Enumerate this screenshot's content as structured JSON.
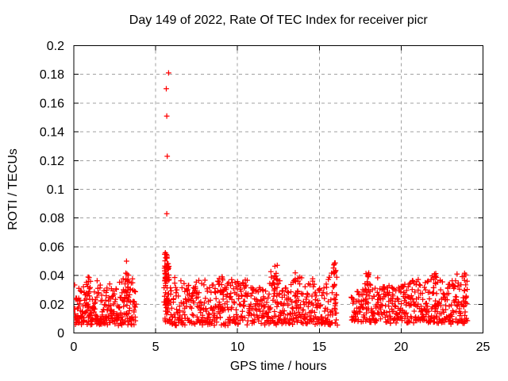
{
  "chart_data": {
    "type": "scatter",
    "title": "Day 149 of 2022, Rate Of TEC Index for receiver picr",
    "xlabel": "GPS time / hours",
    "ylabel": "ROTI / TECUs",
    "xlim": [
      0,
      25
    ],
    "ylim": [
      0,
      0.2
    ],
    "xticks": [
      0,
      5,
      10,
      15,
      20,
      25
    ],
    "xtick_labels": [
      "0",
      "5",
      "10",
      "15",
      "20",
      "25"
    ],
    "yticks": [
      0,
      0.02,
      0.04,
      0.06,
      0.08,
      0.1,
      0.12,
      0.14,
      0.16,
      0.18,
      0.2
    ],
    "ytick_labels": [
      "0",
      "0.02",
      "0.04",
      "0.06",
      "0.08",
      "0.1",
      "0.12",
      "0.14",
      "0.16",
      "0.18",
      "0.2"
    ],
    "grid": true,
    "legend": "none",
    "colors": {
      "marker": "#ff0000",
      "axis": "#000000",
      "grid": "#a0a0a0",
      "text": "#000000",
      "background": "#ffffff"
    },
    "marker": {
      "shape": "plus",
      "color": "#ff0000",
      "arm": 3.4,
      "stroke_width": 1.25
    },
    "series": [
      {
        "name": "ROTI",
        "marker": "plus",
        "color": "#ff0000"
      }
    ],
    "seed": 149,
    "outlier_points": [
      [
        5.65,
        0.17
      ],
      [
        5.68,
        0.151
      ],
      [
        5.68,
        0.083
      ],
      [
        5.71,
        0.123
      ],
      [
        5.79,
        0.181
      ],
      [
        3.22,
        0.05
      ]
    ],
    "data_gaps": [
      [
        3.8,
        5.5
      ],
      [
        16.1,
        16.95
      ]
    ],
    "clusters": [
      {
        "name": "morning-cluster",
        "x_range": [
          0.02,
          3.8
        ],
        "n": 280,
        "y_min": 0.006,
        "envelope": [
          [
            0.0,
            0.036
          ],
          [
            0.3,
            0.04
          ],
          [
            0.6,
            0.034
          ],
          [
            0.9,
            0.04
          ],
          [
            1.2,
            0.036
          ],
          [
            1.5,
            0.038
          ],
          [
            1.8,
            0.031
          ],
          [
            2.1,
            0.035
          ],
          [
            2.4,
            0.03
          ],
          [
            2.7,
            0.033
          ],
          [
            3.0,
            0.04
          ],
          [
            3.3,
            0.043
          ],
          [
            3.55,
            0.038
          ],
          [
            3.8,
            0.03
          ]
        ]
      },
      {
        "name": "midday-cluster",
        "x_range": [
          5.5,
          16.1
        ],
        "n": 640,
        "y_min": 0.006,
        "envelope": [
          [
            5.5,
            0.044
          ],
          [
            5.62,
            0.056
          ],
          [
            5.8,
            0.05
          ],
          [
            6.0,
            0.038
          ],
          [
            6.4,
            0.042
          ],
          [
            6.8,
            0.034
          ],
          [
            7.2,
            0.032
          ],
          [
            7.6,
            0.038
          ],
          [
            8.0,
            0.04
          ],
          [
            8.35,
            0.031
          ],
          [
            8.7,
            0.038
          ],
          [
            9.0,
            0.042
          ],
          [
            9.4,
            0.04
          ],
          [
            9.75,
            0.042
          ],
          [
            10.1,
            0.034
          ],
          [
            10.5,
            0.04
          ],
          [
            10.9,
            0.031
          ],
          [
            11.3,
            0.035
          ],
          [
            11.7,
            0.031
          ],
          [
            12.1,
            0.045
          ],
          [
            12.4,
            0.048
          ],
          [
            12.75,
            0.036
          ],
          [
            13.1,
            0.031
          ],
          [
            13.5,
            0.046
          ],
          [
            13.9,
            0.04
          ],
          [
            14.25,
            0.034
          ],
          [
            14.6,
            0.043
          ],
          [
            14.95,
            0.031
          ],
          [
            15.3,
            0.033
          ],
          [
            15.6,
            0.04
          ],
          [
            15.95,
            0.05
          ],
          [
            16.1,
            0.044
          ]
        ]
      },
      {
        "name": "evening-cluster",
        "x_range": [
          16.95,
          24.05
        ],
        "n": 460,
        "y_min": 0.007,
        "envelope": [
          [
            16.95,
            0.026
          ],
          [
            17.3,
            0.03
          ],
          [
            17.6,
            0.034
          ],
          [
            17.95,
            0.043
          ],
          [
            18.2,
            0.038
          ],
          [
            18.55,
            0.041
          ],
          [
            18.9,
            0.036
          ],
          [
            19.2,
            0.039
          ],
          [
            19.5,
            0.034
          ],
          [
            19.8,
            0.032
          ],
          [
            20.1,
            0.035
          ],
          [
            20.4,
            0.036
          ],
          [
            20.7,
            0.041
          ],
          [
            21.0,
            0.038
          ],
          [
            21.3,
            0.034
          ],
          [
            21.65,
            0.037
          ],
          [
            22.0,
            0.046
          ],
          [
            22.3,
            0.042
          ],
          [
            22.6,
            0.035
          ],
          [
            22.9,
            0.037
          ],
          [
            23.2,
            0.04
          ],
          [
            23.5,
            0.043
          ],
          [
            23.8,
            0.043
          ],
          [
            24.05,
            0.04
          ]
        ]
      }
    ],
    "spike_columns": [
      {
        "x": 5.63,
        "jitter": 0.09,
        "n": 42,
        "y_range": [
          0.013,
          0.056
        ]
      },
      {
        "x": 5.78,
        "jitter": 0.05,
        "n": 16,
        "y_range": [
          0.02,
          0.05
        ]
      },
      {
        "x": 0.9,
        "jitter": 0.15,
        "n": 12,
        "y_range": [
          0.012,
          0.04
        ]
      },
      {
        "x": 3.3,
        "jitter": 0.12,
        "n": 14,
        "y_range": [
          0.012,
          0.042
        ]
      },
      {
        "x": 9.0,
        "jitter": 0.15,
        "n": 12,
        "y_range": [
          0.015,
          0.042
        ]
      },
      {
        "x": 12.3,
        "jitter": 0.15,
        "n": 16,
        "y_range": [
          0.02,
          0.048
        ]
      },
      {
        "x": 13.6,
        "jitter": 0.12,
        "n": 12,
        "y_range": [
          0.02,
          0.046
        ]
      },
      {
        "x": 15.95,
        "jitter": 0.08,
        "n": 14,
        "y_range": [
          0.015,
          0.05
        ]
      },
      {
        "x": 17.95,
        "jitter": 0.1,
        "n": 10,
        "y_range": [
          0.015,
          0.042
        ]
      },
      {
        "x": 22.05,
        "jitter": 0.1,
        "n": 12,
        "y_range": [
          0.015,
          0.045
        ]
      },
      {
        "x": 23.9,
        "jitter": 0.08,
        "n": 10,
        "y_range": [
          0.015,
          0.042
        ]
      }
    ]
  }
}
